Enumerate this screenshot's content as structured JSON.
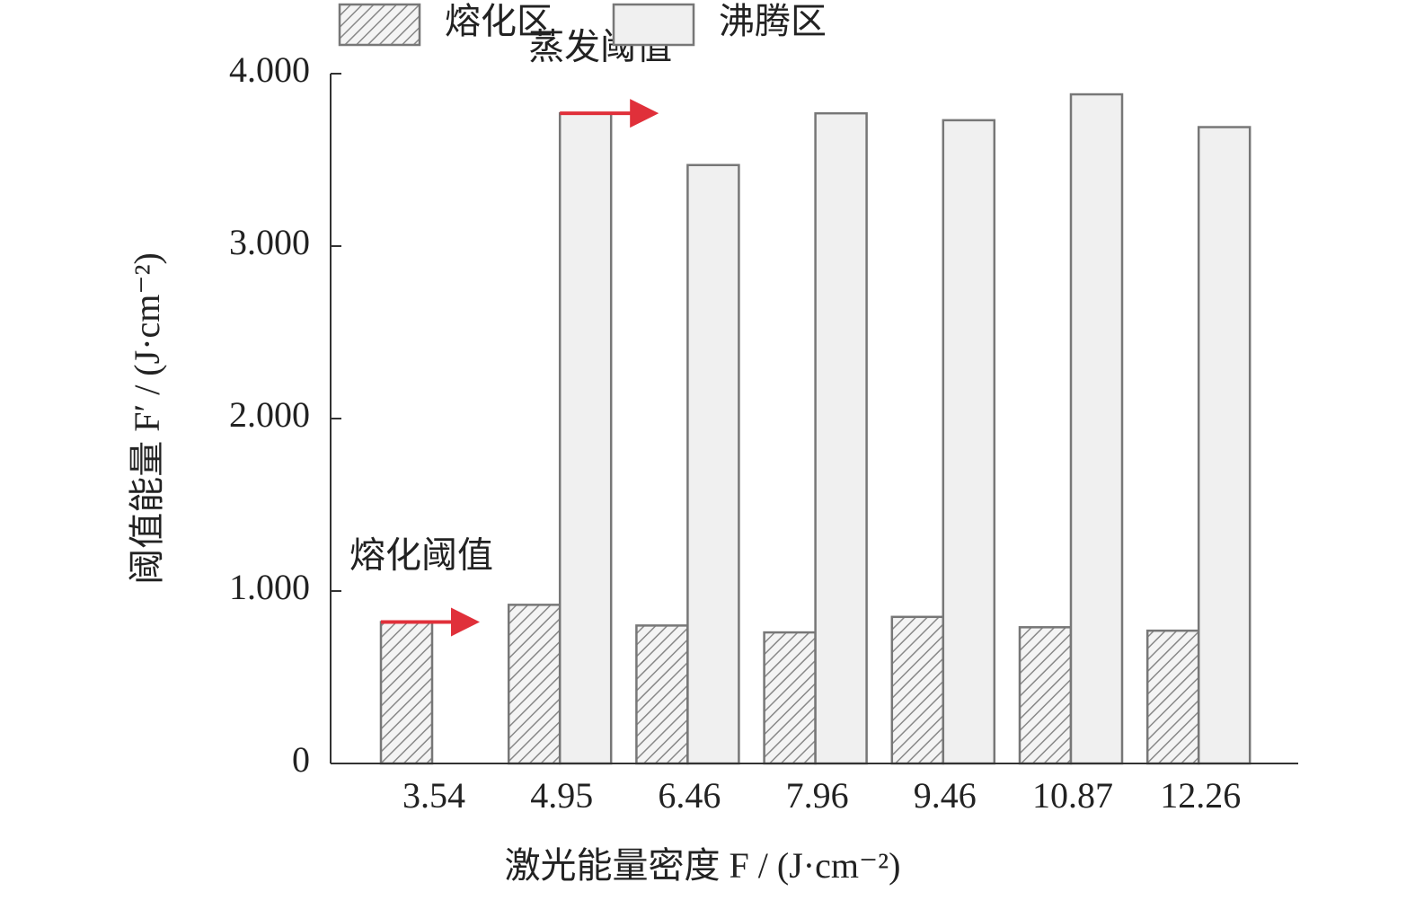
{
  "chart_data": {
    "type": "bar",
    "x_label": "激光能量密度 F / (J·cm⁻²)",
    "y_label": "阈值能量 F′ / (J·cm⁻²)",
    "categories": [
      "3.54",
      "4.95",
      "6.46",
      "7.96",
      "9.46",
      "10.87",
      "12.26"
    ],
    "series": [
      {
        "name": "熔化区",
        "color": "#f4f4f4",
        "pattern": "hatch",
        "values": [
          0.82,
          0.92,
          0.8,
          0.76,
          0.85,
          0.79,
          0.77
        ]
      },
      {
        "name": "沸腾区",
        "color": "#f0f0f0",
        "pattern": "solid",
        "values": [
          null,
          3.77,
          3.47,
          3.77,
          3.73,
          3.88,
          3.69
        ]
      }
    ],
    "annotations": [
      {
        "text": "熔化阈值",
        "series": 0,
        "category": 0
      },
      {
        "text": "蒸发阈值",
        "series": 1,
        "category": 1
      }
    ],
    "ylim": [
      0,
      4
    ],
    "yticks": [
      0,
      {
        "value": 1,
        "label": "1.000"
      },
      {
        "value": 2,
        "label": "2.000"
      },
      {
        "value": 3,
        "label": "3.000"
      },
      {
        "value": 4,
        "label": "4.000"
      }
    ],
    "legend": "top",
    "grid": false
  }
}
